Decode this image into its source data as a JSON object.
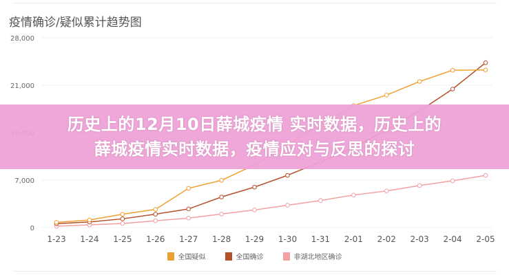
{
  "chart_data": {
    "type": "line",
    "title": "疫情确诊/疑似累计趋势图",
    "headline": [
      "历史上的12月10日薛城疫情 实时数据，历史上的",
      "薛城疫情实时数据，疫情应对与反思的探讨"
    ],
    "categories": [
      "1-23",
      "1-24",
      "1-25",
      "1-26",
      "1-27",
      "1-28",
      "1-29",
      "1-30",
      "1-31",
      "2-01",
      "2-02",
      "2-03",
      "2-04",
      "2-05"
    ],
    "ylim": [
      0,
      28000
    ],
    "yticks": [
      0,
      7000,
      14000,
      21000,
      28000
    ],
    "ytick_labels": [
      "0",
      "7,000",
      "14,000",
      "21,000",
      "28,000"
    ],
    "grid": true,
    "legend_position": "bottom",
    "series": [
      {
        "name": "全国疑似",
        "color": "#f0a030",
        "values": [
          769,
          1118,
          1965,
          2684,
          5794,
          6973,
          9239,
          12167,
          15238,
          17988,
          19544,
          21558,
          23214,
          23260
        ]
      },
      {
        "name": "全国确诊",
        "color": "#b5502a",
        "values": [
          571,
          830,
          1287,
          1975,
          2744,
          4515,
          5974,
          7711,
          9692,
          11791,
          14380,
          17205,
          20438,
          24324
        ]
      },
      {
        "name": "非湖北地区确诊",
        "color": "#f2a0a0",
        "values": [
          200,
          400,
          600,
          1000,
          1400,
          2000,
          2600,
          3300,
          4000,
          4800,
          5400,
          6200,
          6900,
          7700
        ]
      }
    ]
  }
}
